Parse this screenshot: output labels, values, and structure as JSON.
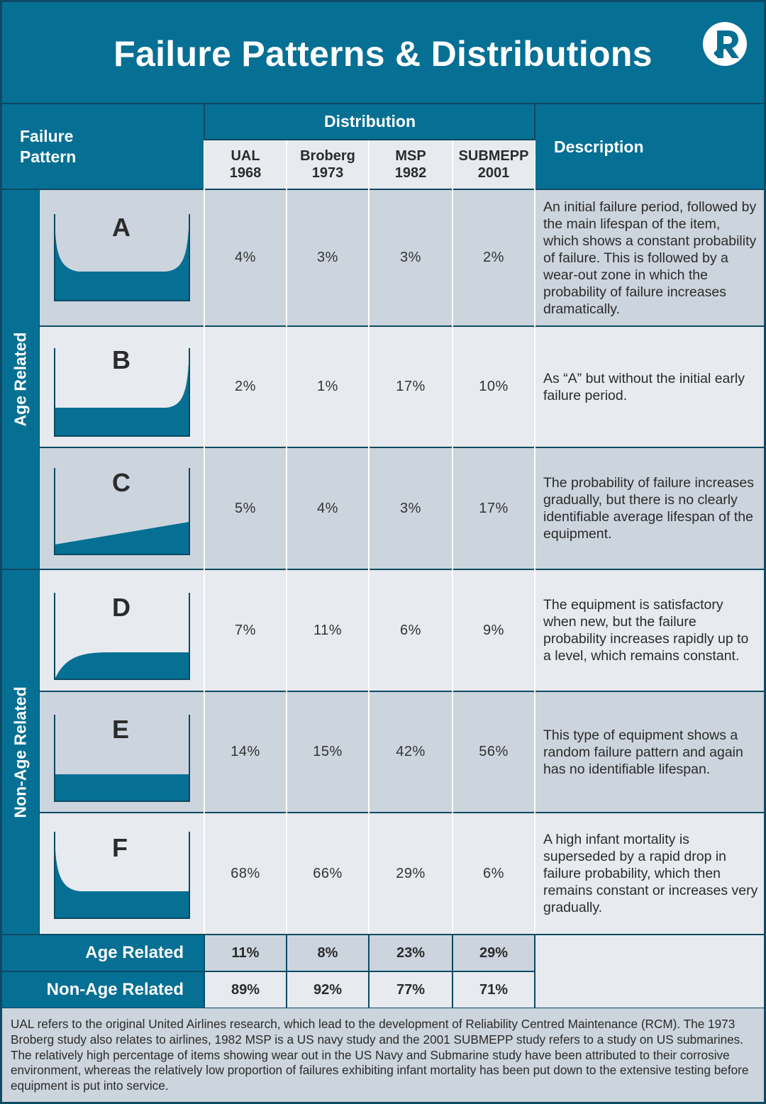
{
  "title": "Failure Patterns & Distributions",
  "header": {
    "failure_pattern": [
      "Failure",
      "Pattern"
    ],
    "distribution": "Distribution",
    "description": "Description",
    "columns": [
      {
        "name": "UAL",
        "year": "1968"
      },
      {
        "name": "Broberg",
        "year": "1973"
      },
      {
        "name": "MSP",
        "year": "1982"
      },
      {
        "name": "SUBMEPP",
        "year": "2001"
      }
    ]
  },
  "groups": {
    "age_related": "Age Related",
    "non_age_related": "Non-Age Related"
  },
  "rows": [
    {
      "letter": "A",
      "values": [
        "4%",
        "3%",
        "3%",
        "2%"
      ],
      "description": "An initial failure period, followed by the main lifespan of the item, which shows a constant probability of failure. This is followed by a wear-out zone in which the probability of failure increases dramatically."
    },
    {
      "letter": "B",
      "values": [
        "2%",
        "1%",
        "17%",
        "10%"
      ],
      "description": "As “A” but without the initial early failure period."
    },
    {
      "letter": "C",
      "values": [
        "5%",
        "4%",
        "3%",
        "17%"
      ],
      "description": "The probability of failure increases gradually, but there is no clearly identifiable average lifespan of the equipment."
    },
    {
      "letter": "D",
      "values": [
        "7%",
        "11%",
        "6%",
        "9%"
      ],
      "description": "The equipment is satisfactory when new, but the failure probability increases rapidly up to a level, which remains constant."
    },
    {
      "letter": "E",
      "values": [
        "14%",
        "15%",
        "42%",
        "56%"
      ],
      "description": "This type of equipment shows a random failure pattern and again has no identifiable lifespan."
    },
    {
      "letter": "F",
      "values": [
        "68%",
        "66%",
        "29%",
        "6%"
      ],
      "description": "A high infant mortality is superseded by a rapid drop in failure probability, which then remains constant or increases very gradually."
    }
  ],
  "totals": [
    {
      "label": "Age Related",
      "values": [
        "11%",
        "8%",
        "23%",
        "29%"
      ]
    },
    {
      "label": "Non-Age Related",
      "values": [
        "89%",
        "92%",
        "77%",
        "71%"
      ]
    }
  ],
  "footer": "UAL refers to the original United Airlines research, which lead to the development of Reliability Centred Maintenance (RCM). The 1973 Broberg study also relates to airlines, 1982 MSP is a US navy study and the 2001 SUBMEPP study refers to a study on US submarines. The relatively high percentage of items showing wear out in the US Navy and Submarine study have been attributed to their corrosive environment, whereas the relatively low proportion of failures exhibiting infant mortality has been put down to the extensive testing before equipment is put into service.",
  "colors": {
    "primary": "#066f94",
    "dark": "#0d4a63",
    "row_dark": "#ccd4dd",
    "row_light": "#e7eaee",
    "curve_fill": "#066f94"
  },
  "icons": [
    "logo-icon",
    "bathtub-curve-icon",
    "wear-out-curve-icon",
    "gradual-increase-curve-icon",
    "early-rise-curve-icon",
    "constant-curve-icon",
    "infant-mortality-curve-icon"
  ]
}
